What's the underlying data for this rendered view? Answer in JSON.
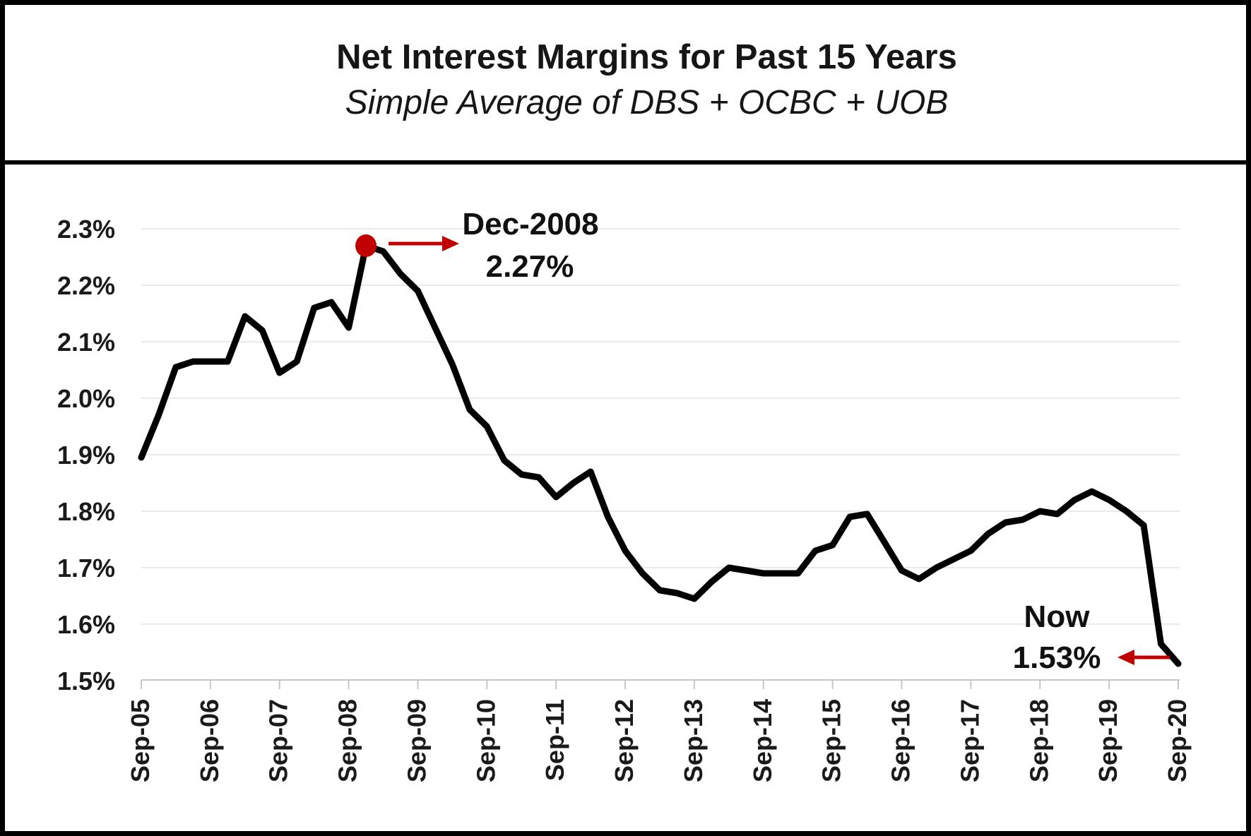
{
  "header": {
    "title": "Net Interest Margins for Past 15 Years",
    "subtitle": "Simple Average of DBS + OCBC + UOB"
  },
  "chart_data": {
    "type": "line",
    "title": "Net Interest Margins for Past 15 Years",
    "subtitle": "Simple Average of DBS + OCBC + UOB",
    "unit": "percent",
    "categories": [
      "Sep-05",
      "Dec-05",
      "Mar-06",
      "Jun-06",
      "Sep-06",
      "Dec-06",
      "Mar-07",
      "Jun-07",
      "Sep-07",
      "Dec-07",
      "Mar-08",
      "Jun-08",
      "Sep-08",
      "Dec-08",
      "Mar-09",
      "Jun-09",
      "Sep-09",
      "Dec-09",
      "Mar-10",
      "Jun-10",
      "Sep-10",
      "Dec-10",
      "Mar-11",
      "Jun-11",
      "Sep-11",
      "Dec-11",
      "Mar-12",
      "Jun-12",
      "Sep-12",
      "Dec-12",
      "Mar-13",
      "Jun-13",
      "Sep-13",
      "Dec-13",
      "Mar-14",
      "Jun-14",
      "Sep-14",
      "Dec-14",
      "Mar-15",
      "Jun-15",
      "Sep-15",
      "Dec-15",
      "Mar-16",
      "Jun-16",
      "Sep-16",
      "Dec-16",
      "Mar-17",
      "Jun-17",
      "Sep-17",
      "Dec-17",
      "Mar-18",
      "Jun-18",
      "Sep-18",
      "Dec-18",
      "Mar-19",
      "Jun-19",
      "Sep-19",
      "Dec-19",
      "Mar-20",
      "Jun-20",
      "Sep-20"
    ],
    "values": [
      1.895,
      1.97,
      2.055,
      2.065,
      2.065,
      2.065,
      2.145,
      2.12,
      2.045,
      2.065,
      2.16,
      2.17,
      2.125,
      2.27,
      2.26,
      2.22,
      2.19,
      2.125,
      2.06,
      1.98,
      1.95,
      1.89,
      1.865,
      1.86,
      1.825,
      1.85,
      1.87,
      1.79,
      1.73,
      1.69,
      1.66,
      1.655,
      1.645,
      1.675,
      1.7,
      1.695,
      1.69,
      1.69,
      1.69,
      1.73,
      1.74,
      1.79,
      1.795,
      1.745,
      1.695,
      1.68,
      1.7,
      1.715,
      1.73,
      1.76,
      1.78,
      1.785,
      1.8,
      1.795,
      1.82,
      1.835,
      1.82,
      1.8,
      1.775,
      1.565,
      1.53
    ],
    "ylim": [
      1.5,
      2.3
    ],
    "ytick_step": 0.1,
    "ytick_labels": [
      "2.3%",
      "2.2%",
      "2.1%",
      "2.0%",
      "1.9%",
      "1.8%",
      "1.7%",
      "1.6%",
      "1.5%"
    ],
    "xtick_labels": [
      "Sep-05",
      "Sep-06",
      "Sep-07",
      "Sep-08",
      "Sep-09",
      "Sep-10",
      "Sep-11",
      "Sep-12",
      "Sep-13",
      "Sep-14",
      "Sep-15",
      "Sep-16",
      "Sep-17",
      "Sep-18",
      "Sep-19",
      "Sep-20"
    ],
    "grid": true,
    "legend": false,
    "line_color": "#000000",
    "colors": {
      "accent_red": "#C00000",
      "accent_green": "#00B050",
      "gridline": "#E9E9E9",
      "axis": "#C6C6C6"
    },
    "annotations": {
      "peak": {
        "index": 13,
        "category": "Dec-08",
        "value": 2.27,
        "date_label": "Dec-2008",
        "value_label": "2.27%",
        "marker": "red-dot"
      },
      "now": {
        "index": 60,
        "category": "Sep-20",
        "value": 1.53,
        "label": "Now",
        "value_label": "1.53%"
      }
    }
  }
}
